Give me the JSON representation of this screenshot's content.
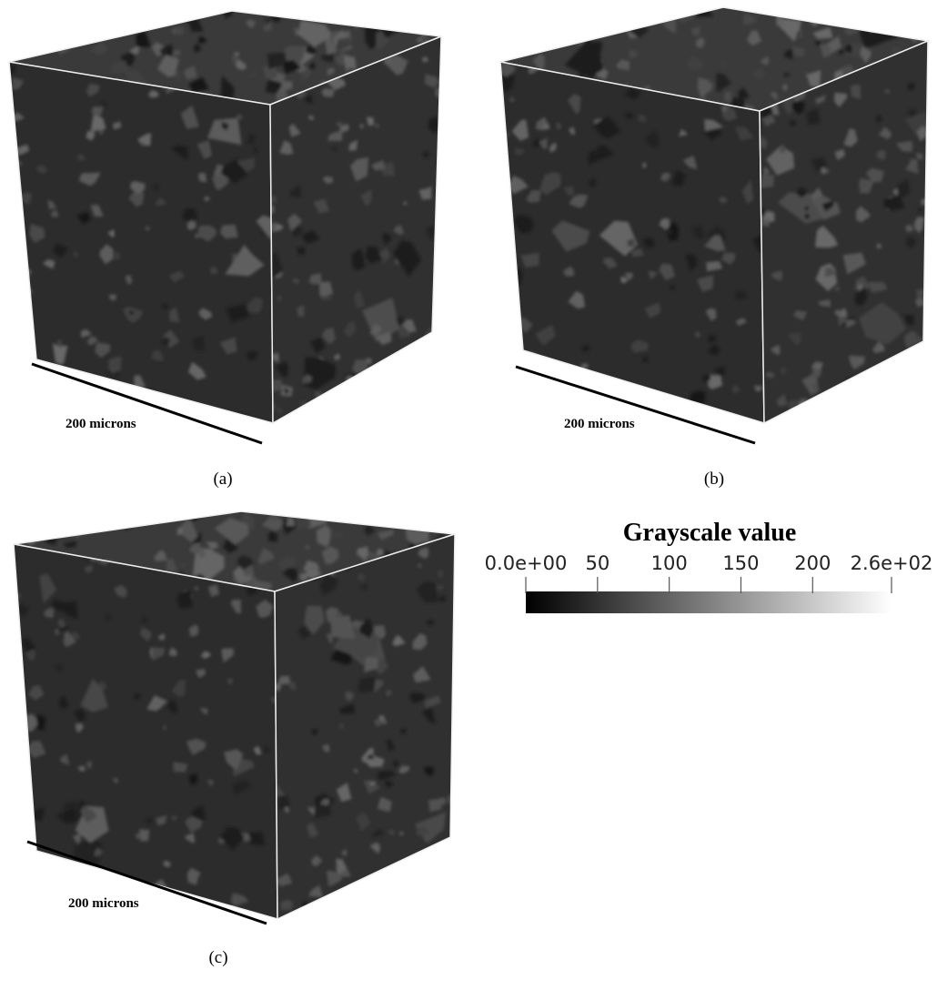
{
  "panels": [
    {
      "label": "(a)",
      "scale_label": "200 microns"
    },
    {
      "label": "(b)",
      "scale_label": "200 microns"
    },
    {
      "label": "(c)",
      "scale_label": "200 microns"
    }
  ],
  "colorbar": {
    "title": "Grayscale value",
    "range": [
      0,
      255
    ],
    "ticks": [
      {
        "value": 0,
        "label": "0.0e+00"
      },
      50,
      100,
      150,
      200,
      {
        "value": 255,
        "label": "2.6e+02"
      }
    ]
  }
}
